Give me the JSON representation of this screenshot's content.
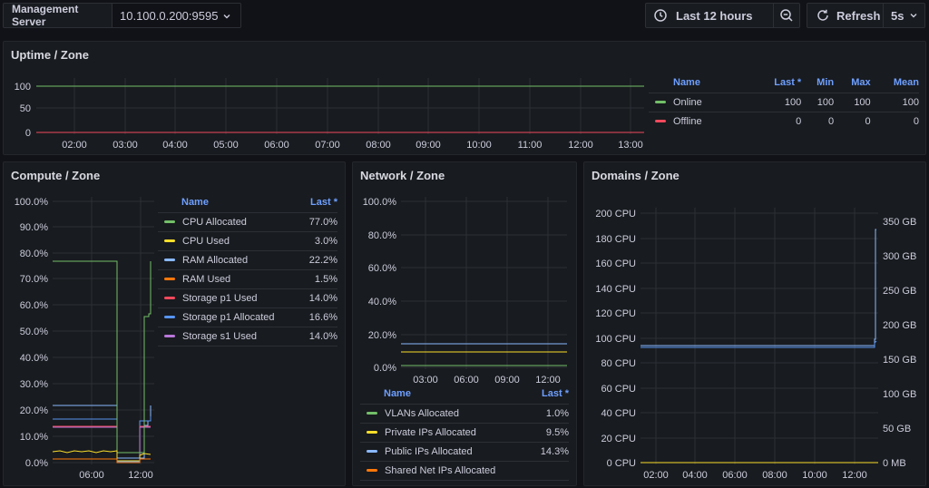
{
  "topbar": {
    "var_label": "Management Server",
    "var_value": "10.100.0.200:9595",
    "time_range": "Last 12 hours",
    "refresh_label": "Refresh",
    "refresh_interval": "5s"
  },
  "uptime": {
    "title": "Uptime / Zone",
    "legend_headers": {
      "name": "Name",
      "last": "Last *",
      "min": "Min",
      "max": "Max",
      "mean": "Mean"
    },
    "legend": [
      {
        "name": "Online",
        "color": "#73bf69",
        "last": "100",
        "min": "100",
        "max": "100",
        "mean": "100"
      },
      {
        "name": "Offline",
        "color": "#f2495c",
        "last": "0",
        "min": "0",
        "max": "0",
        "mean": "0"
      }
    ],
    "chart_data": {
      "type": "line",
      "y_ticks": [
        "100",
        "50",
        "0"
      ],
      "x_ticks": [
        "02:00",
        "03:00",
        "04:00",
        "05:00",
        "06:00",
        "07:00",
        "08:00",
        "09:00",
        "10:00",
        "11:00",
        "12:00",
        "13:00"
      ],
      "ylim": [
        0,
        100
      ],
      "series": [
        {
          "name": "Online",
          "values": [
            100,
            100
          ]
        },
        {
          "name": "Offline",
          "values": [
            0,
            0
          ]
        }
      ]
    }
  },
  "compute": {
    "title": "Compute / Zone",
    "legend_headers": {
      "name": "Name",
      "last": "Last *"
    },
    "legend": [
      {
        "name": "CPU Allocated",
        "color": "#73bf69",
        "last": "77.0%"
      },
      {
        "name": "CPU Used",
        "color": "#fade2a",
        "last": "3.0%"
      },
      {
        "name": "RAM Allocated",
        "color": "#8ab8ff",
        "last": "22.2%"
      },
      {
        "name": "RAM Used",
        "color": "#ff780a",
        "last": "1.5%"
      },
      {
        "name": "Storage p1 Used",
        "color": "#f2495c",
        "last": "14.0%"
      },
      {
        "name": "Storage p1 Allocated",
        "color": "#5794f2",
        "last": "16.6%"
      },
      {
        "name": "Storage s1 Used",
        "color": "#b877d9",
        "last": "14.0%"
      }
    ],
    "chart_data": {
      "type": "line",
      "y_ticks": [
        "100.0%",
        "90.0%",
        "80.0%",
        "70.0%",
        "60.0%",
        "50.0%",
        "40.0%",
        "30.0%",
        "20.0%",
        "10.0%",
        "0.0%"
      ],
      "x_ticks": [
        "06:00",
        "12:00"
      ],
      "ylim": [
        0,
        100
      ]
    }
  },
  "network": {
    "title": "Network / Zone",
    "legend_headers": {
      "name": "Name",
      "last": "Last *"
    },
    "legend": [
      {
        "name": "VLANs Allocated",
        "color": "#73bf69",
        "last": "1.0%"
      },
      {
        "name": "Private IPs Allocated",
        "color": "#fade2a",
        "last": "9.5%"
      },
      {
        "name": "Public IPs Allocated",
        "color": "#8ab8ff",
        "last": "14.3%"
      },
      {
        "name": "Shared Net IPs Allocated",
        "color": "#ff780a",
        "last": ""
      }
    ],
    "chart_data": {
      "type": "line",
      "y_ticks": [
        "100.0%",
        "80.0%",
        "60.0%",
        "40.0%",
        "20.0%",
        "0.0%"
      ],
      "x_ticks": [
        "03:00",
        "06:00",
        "09:00",
        "12:00"
      ],
      "ylim": [
        0,
        100
      ],
      "series": [
        {
          "name": "VLANs Allocated",
          "values": [
            1.0,
            1.0
          ]
        },
        {
          "name": "Private IPs Allocated",
          "values": [
            9.5,
            9.5
          ]
        },
        {
          "name": "Public IPs Allocated",
          "values": [
            14.3,
            14.3
          ]
        }
      ]
    }
  },
  "domains": {
    "title": "Domains / Zone",
    "chart_data": {
      "type": "line",
      "y_ticks_left": [
        "200 CPU",
        "180 CPU",
        "160 CPU",
        "140 CPU",
        "120 CPU",
        "100 CPU",
        "80 CPU",
        "60 CPU",
        "40 CPU",
        "20 CPU",
        "0 CPU"
      ],
      "y_ticks_right": [
        "350 GB",
        "300 GB",
        "250 GB",
        "200 GB",
        "150 GB",
        "100 GB",
        "50 GB",
        "0 MB"
      ],
      "x_ticks": [
        "02:00",
        "04:00",
        "06:00",
        "08:00",
        "10:00",
        "12:00"
      ],
      "ylim_left": [
        0,
        200
      ]
    }
  }
}
